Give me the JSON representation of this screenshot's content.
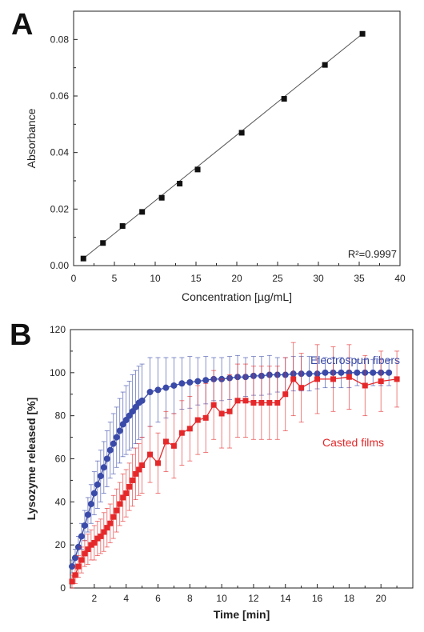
{
  "panels": {
    "a": "A",
    "b": "B"
  },
  "chart_data": [
    {
      "type": "scatter",
      "panel": "A",
      "xlabel": "Concentration [µg/mL]",
      "ylabel": "Absorbance",
      "xlim": [
        0,
        40
      ],
      "ylim": [
        0,
        0.09
      ],
      "xticks": [
        0,
        5,
        10,
        15,
        20,
        25,
        30,
        35,
        40
      ],
      "yticks": [
        0.0,
        0.02,
        0.04,
        0.06,
        0.08
      ],
      "x": [
        1.2,
        3.6,
        6.0,
        8.4,
        10.8,
        13.0,
        15.2,
        20.6,
        25.8,
        30.8,
        35.4
      ],
      "y": [
        0.0025,
        0.008,
        0.014,
        0.019,
        0.024,
        0.029,
        0.034,
        0.047,
        0.059,
        0.071,
        0.082
      ],
      "fit_line": {
        "x": [
          1.2,
          35.4
        ],
        "y": [
          0.0025,
          0.082
        ]
      },
      "annotation": "R²=0.9997",
      "grid": false
    },
    {
      "type": "line",
      "panel": "B",
      "xlabel": "Time [min]",
      "ylabel": "Lysozyme released [%]",
      "xlim": [
        0.5,
        22
      ],
      "ylim": [
        0,
        120
      ],
      "xticks": [
        2,
        4,
        6,
        8,
        10,
        12,
        14,
        16,
        18,
        20
      ],
      "yticks": [
        0,
        20,
        40,
        60,
        80,
        100,
        120
      ],
      "grid": false,
      "series": [
        {
          "name": "Electrospun fibers",
          "color": "#3a4aa8",
          "marker": "circle",
          "x": [
            0.6,
            0.8,
            1.0,
            1.2,
            1.4,
            1.6,
            1.8,
            2.0,
            2.2,
            2.4,
            2.6,
            2.8,
            3.0,
            3.2,
            3.4,
            3.6,
            3.8,
            4.0,
            4.2,
            4.4,
            4.6,
            4.8,
            5.0,
            5.5,
            6.0,
            6.5,
            7.0,
            7.5,
            8.0,
            8.5,
            9.0,
            9.5,
            10.0,
            10.5,
            11.0,
            11.5,
            12.0,
            12.5,
            13.0,
            13.5,
            14.0,
            14.5,
            15.0,
            15.5,
            16.0,
            16.5,
            17.0,
            17.5,
            18.0,
            18.5,
            19.0,
            19.5,
            20.0,
            20.5
          ],
          "y": [
            10,
            14,
            19,
            24,
            29,
            34,
            39,
            44,
            48,
            52,
            56,
            60,
            64,
            67,
            70,
            73,
            76,
            78,
            80,
            82,
            84,
            86,
            87,
            91,
            92,
            93,
            94,
            95,
            95.5,
            96,
            96.5,
            97,
            97,
            97.5,
            98,
            98,
            98.5,
            98.5,
            99,
            99,
            99,
            99.5,
            99.5,
            99.5,
            99.5,
            100,
            100,
            100,
            100,
            100,
            100,
            100,
            100,
            100
          ],
          "err": [
            3,
            4,
            5,
            6,
            7,
            8,
            9,
            10,
            11,
            12,
            12,
            13,
            13,
            14,
            14,
            15,
            15,
            16,
            16,
            17,
            17,
            17,
            17,
            16,
            15,
            14,
            13,
            12,
            12,
            11,
            11,
            10,
            10,
            10,
            10,
            9,
            9,
            9,
            9,
            8,
            8,
            8,
            8,
            8,
            7,
            7,
            7,
            7,
            7,
            6,
            6,
            6,
            6,
            6
          ]
        },
        {
          "name": "Casted films",
          "color": "#e5282a",
          "marker": "square",
          "x": [
            0.6,
            0.8,
            1.0,
            1.2,
            1.4,
            1.6,
            1.8,
            2.0,
            2.2,
            2.4,
            2.6,
            2.8,
            3.0,
            3.2,
            3.4,
            3.6,
            3.8,
            4.0,
            4.2,
            4.4,
            4.6,
            4.8,
            5.0,
            5.5,
            6.0,
            6.5,
            7.0,
            7.5,
            8.0,
            8.5,
            9.0,
            9.5,
            10.0,
            10.5,
            11.0,
            11.5,
            12.0,
            12.5,
            13.0,
            13.5,
            14.0,
            14.5,
            15.0,
            16.0,
            17.0,
            18.0,
            19.0,
            20.0,
            21.0
          ],
          "y": [
            3,
            6,
            10,
            13,
            16,
            18,
            20,
            21,
            23,
            24,
            26,
            28,
            30,
            33,
            36,
            39,
            42,
            44,
            47,
            50,
            53,
            55,
            57,
            62,
            58,
            68,
            66,
            72,
            74,
            78,
            79,
            85,
            81,
            82,
            87,
            87,
            86,
            86,
            86,
            86,
            90,
            97,
            93,
            97,
            97,
            98,
            94,
            96,
            97
          ],
          "err": [
            3,
            4,
            5,
            6,
            6,
            7,
            7,
            8,
            8,
            8,
            9,
            9,
            9,
            10,
            10,
            10,
            11,
            11,
            11,
            12,
            12,
            12,
            13,
            13,
            14,
            14,
            15,
            15,
            15,
            16,
            16,
            16,
            16,
            17,
            17,
            17,
            17,
            17,
            17,
            17,
            17,
            17,
            16,
            16,
            15,
            15,
            14,
            14,
            13
          ]
        }
      ]
    }
  ]
}
